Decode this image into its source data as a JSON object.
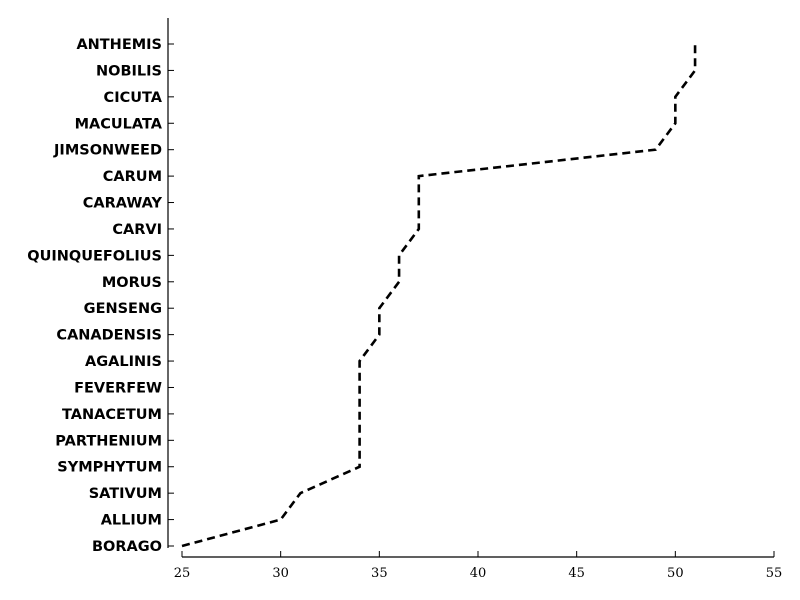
{
  "chart_data": {
    "type": "line",
    "title": "",
    "xlabel": "",
    "ylabel": "",
    "categories": [
      "BORAGO",
      "ALLIUM",
      "SATIVUM",
      "SYMPHYTUM",
      "PARTHENIUM",
      "TANACETUM",
      "FEVERFEW",
      "AGALINIS",
      "CANADENSIS",
      "GENSENG",
      "MORUS",
      "QUINQUEFOLIUS",
      "CARVI",
      "CARAWAY",
      "CARUM",
      "JIMSONWEED",
      "MACULATA",
      "CICUTA",
      "NOBILIS",
      "ANTHEMIS"
    ],
    "values": [
      25,
      30,
      31,
      34,
      34,
      34,
      34,
      34,
      35,
      35,
      36,
      36,
      37,
      37,
      37,
      49,
      50,
      50,
      51,
      51
    ],
    "xlim": [
      25,
      55
    ],
    "xticks": [
      25,
      30,
      35,
      40,
      45,
      50,
      55
    ],
    "line_style": "dashed",
    "line_color": "#000000",
    "grid": false,
    "legend": "none",
    "orientation": "horizontal"
  }
}
